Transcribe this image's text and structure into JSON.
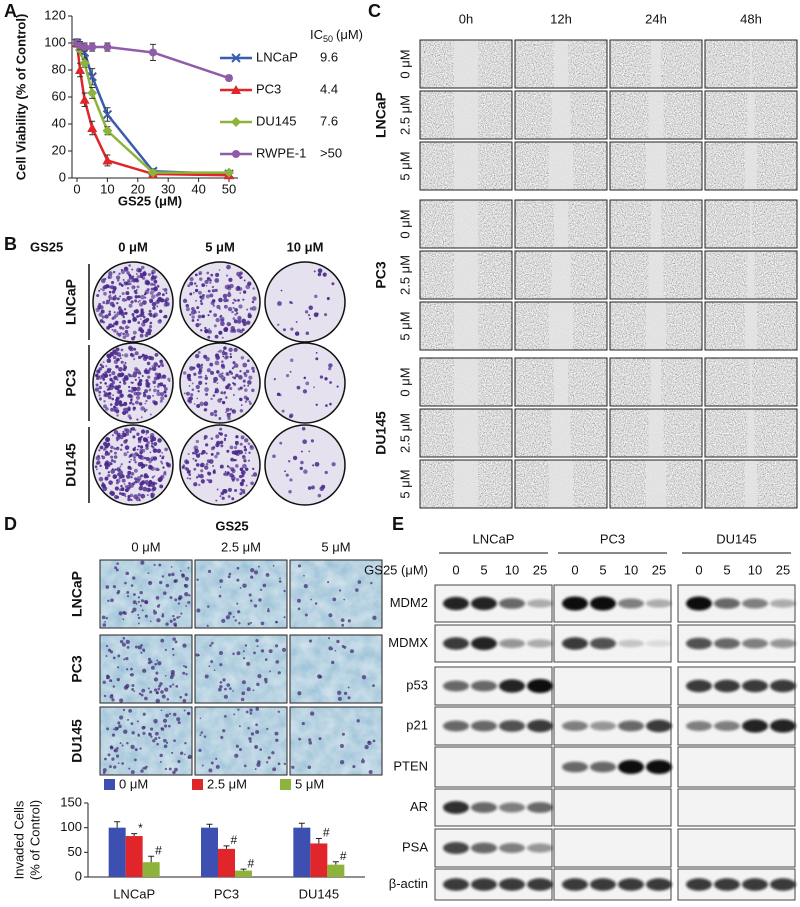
{
  "panel_letters": [
    "A",
    "B",
    "C",
    "D",
    "E"
  ],
  "chart_data": [
    {
      "type": "line",
      "x_label": "GS25 (μM)",
      "y_label": "Cell Viability (% of Control)",
      "ic50_header": {
        "main": "IC",
        "sub": "50",
        "unit": "(μM)"
      },
      "x": [
        0,
        1,
        2.5,
        5,
        10,
        25,
        50
      ],
      "xlim": [
        0,
        50
      ],
      "xticks": [
        0,
        10,
        20,
        30,
        40,
        50
      ],
      "ylim": [
        0,
        120
      ],
      "yticks": [
        0,
        20,
        40,
        60,
        80,
        100,
        120
      ],
      "series": [
        {
          "name": "LNCaP",
          "color": "#3a5bb0",
          "marker": "x",
          "ic50": "9.6",
          "values": [
            100,
            97,
            93,
            75,
            47,
            5,
            3
          ],
          "errors": [
            3,
            3,
            4,
            6,
            5,
            2,
            1
          ]
        },
        {
          "name": "PC3",
          "color": "#e0262a",
          "marker": "triangle",
          "ic50": "4.4",
          "values": [
            100,
            80,
            58,
            37,
            13,
            3,
            2
          ],
          "errors": [
            3,
            5,
            5,
            5,
            4,
            1,
            1
          ]
        },
        {
          "name": "DU145",
          "color": "#8db33a",
          "marker": "diamond",
          "ic50": "7.6",
          "values": [
            100,
            95,
            85,
            63,
            35,
            4,
            4
          ],
          "errors": [
            3,
            3,
            3,
            4,
            3,
            1,
            1
          ]
        },
        {
          "name": "RWPE-1",
          "color": "#8e5ca8",
          "marker": "circle",
          "ic50": ">50",
          "values": [
            100,
            98,
            97,
            97,
            97,
            93,
            74
          ],
          "errors": [
            3,
            3,
            3,
            3,
            3,
            6,
            2
          ]
        }
      ]
    },
    {
      "type": "bar",
      "y_label": [
        "Invaded Cells",
        "(% of Control)"
      ],
      "categories": [
        "LNCaP",
        "PC3",
        "DU145"
      ],
      "ylim": [
        0,
        150
      ],
      "yticks": [
        0,
        50,
        100,
        150
      ],
      "series": [
        {
          "name": "0 μM",
          "color": "#3d4fb0",
          "values": [
            100,
            100,
            100
          ],
          "errors": [
            12,
            7,
            9
          ],
          "annotations": [
            null,
            null,
            null
          ]
        },
        {
          "name": "2.5 μM",
          "color": "#e0262a",
          "values": [
            83,
            57,
            68
          ],
          "errors": [
            5,
            6,
            10
          ],
          "annotations": [
            "*",
            "#",
            "#"
          ]
        },
        {
          "name": "5 μM",
          "color": "#8db33a",
          "values": [
            30,
            13,
            25
          ],
          "errors": [
            12,
            3,
            6
          ],
          "annotations": [
            "#",
            "#",
            "#"
          ]
        }
      ]
    }
  ],
  "panel_b": {
    "treatment": "GS25",
    "concentrations": [
      "0 μM",
      "5 μM",
      "10 μM"
    ],
    "cell_lines": [
      "LNCaP",
      "PC3",
      "DU145"
    ]
  },
  "panel_c": {
    "times": [
      "0h",
      "12h",
      "24h",
      "48h"
    ],
    "concentrations": [
      "0 μM",
      "2.5 μM",
      "5 μM"
    ],
    "cell_lines": [
      "LNCaP",
      "PC3",
      "DU145"
    ]
  },
  "panel_d": {
    "treatment": "GS25",
    "concentrations": [
      "0 μM",
      "2.5 μM",
      "5 μM"
    ],
    "cell_lines": [
      "LNCaP",
      "PC3",
      "DU145"
    ]
  },
  "panel_e": {
    "cell_lines": [
      "LNCaP",
      "PC3",
      "DU145"
    ],
    "dose_label": "GS25 (μM)",
    "doses": [
      0,
      5,
      10,
      25
    ],
    "proteins": [
      "MDM2",
      "MDMX",
      "p53",
      "p21",
      "PTEN",
      "AR",
      "PSA",
      "β-actin"
    ]
  }
}
